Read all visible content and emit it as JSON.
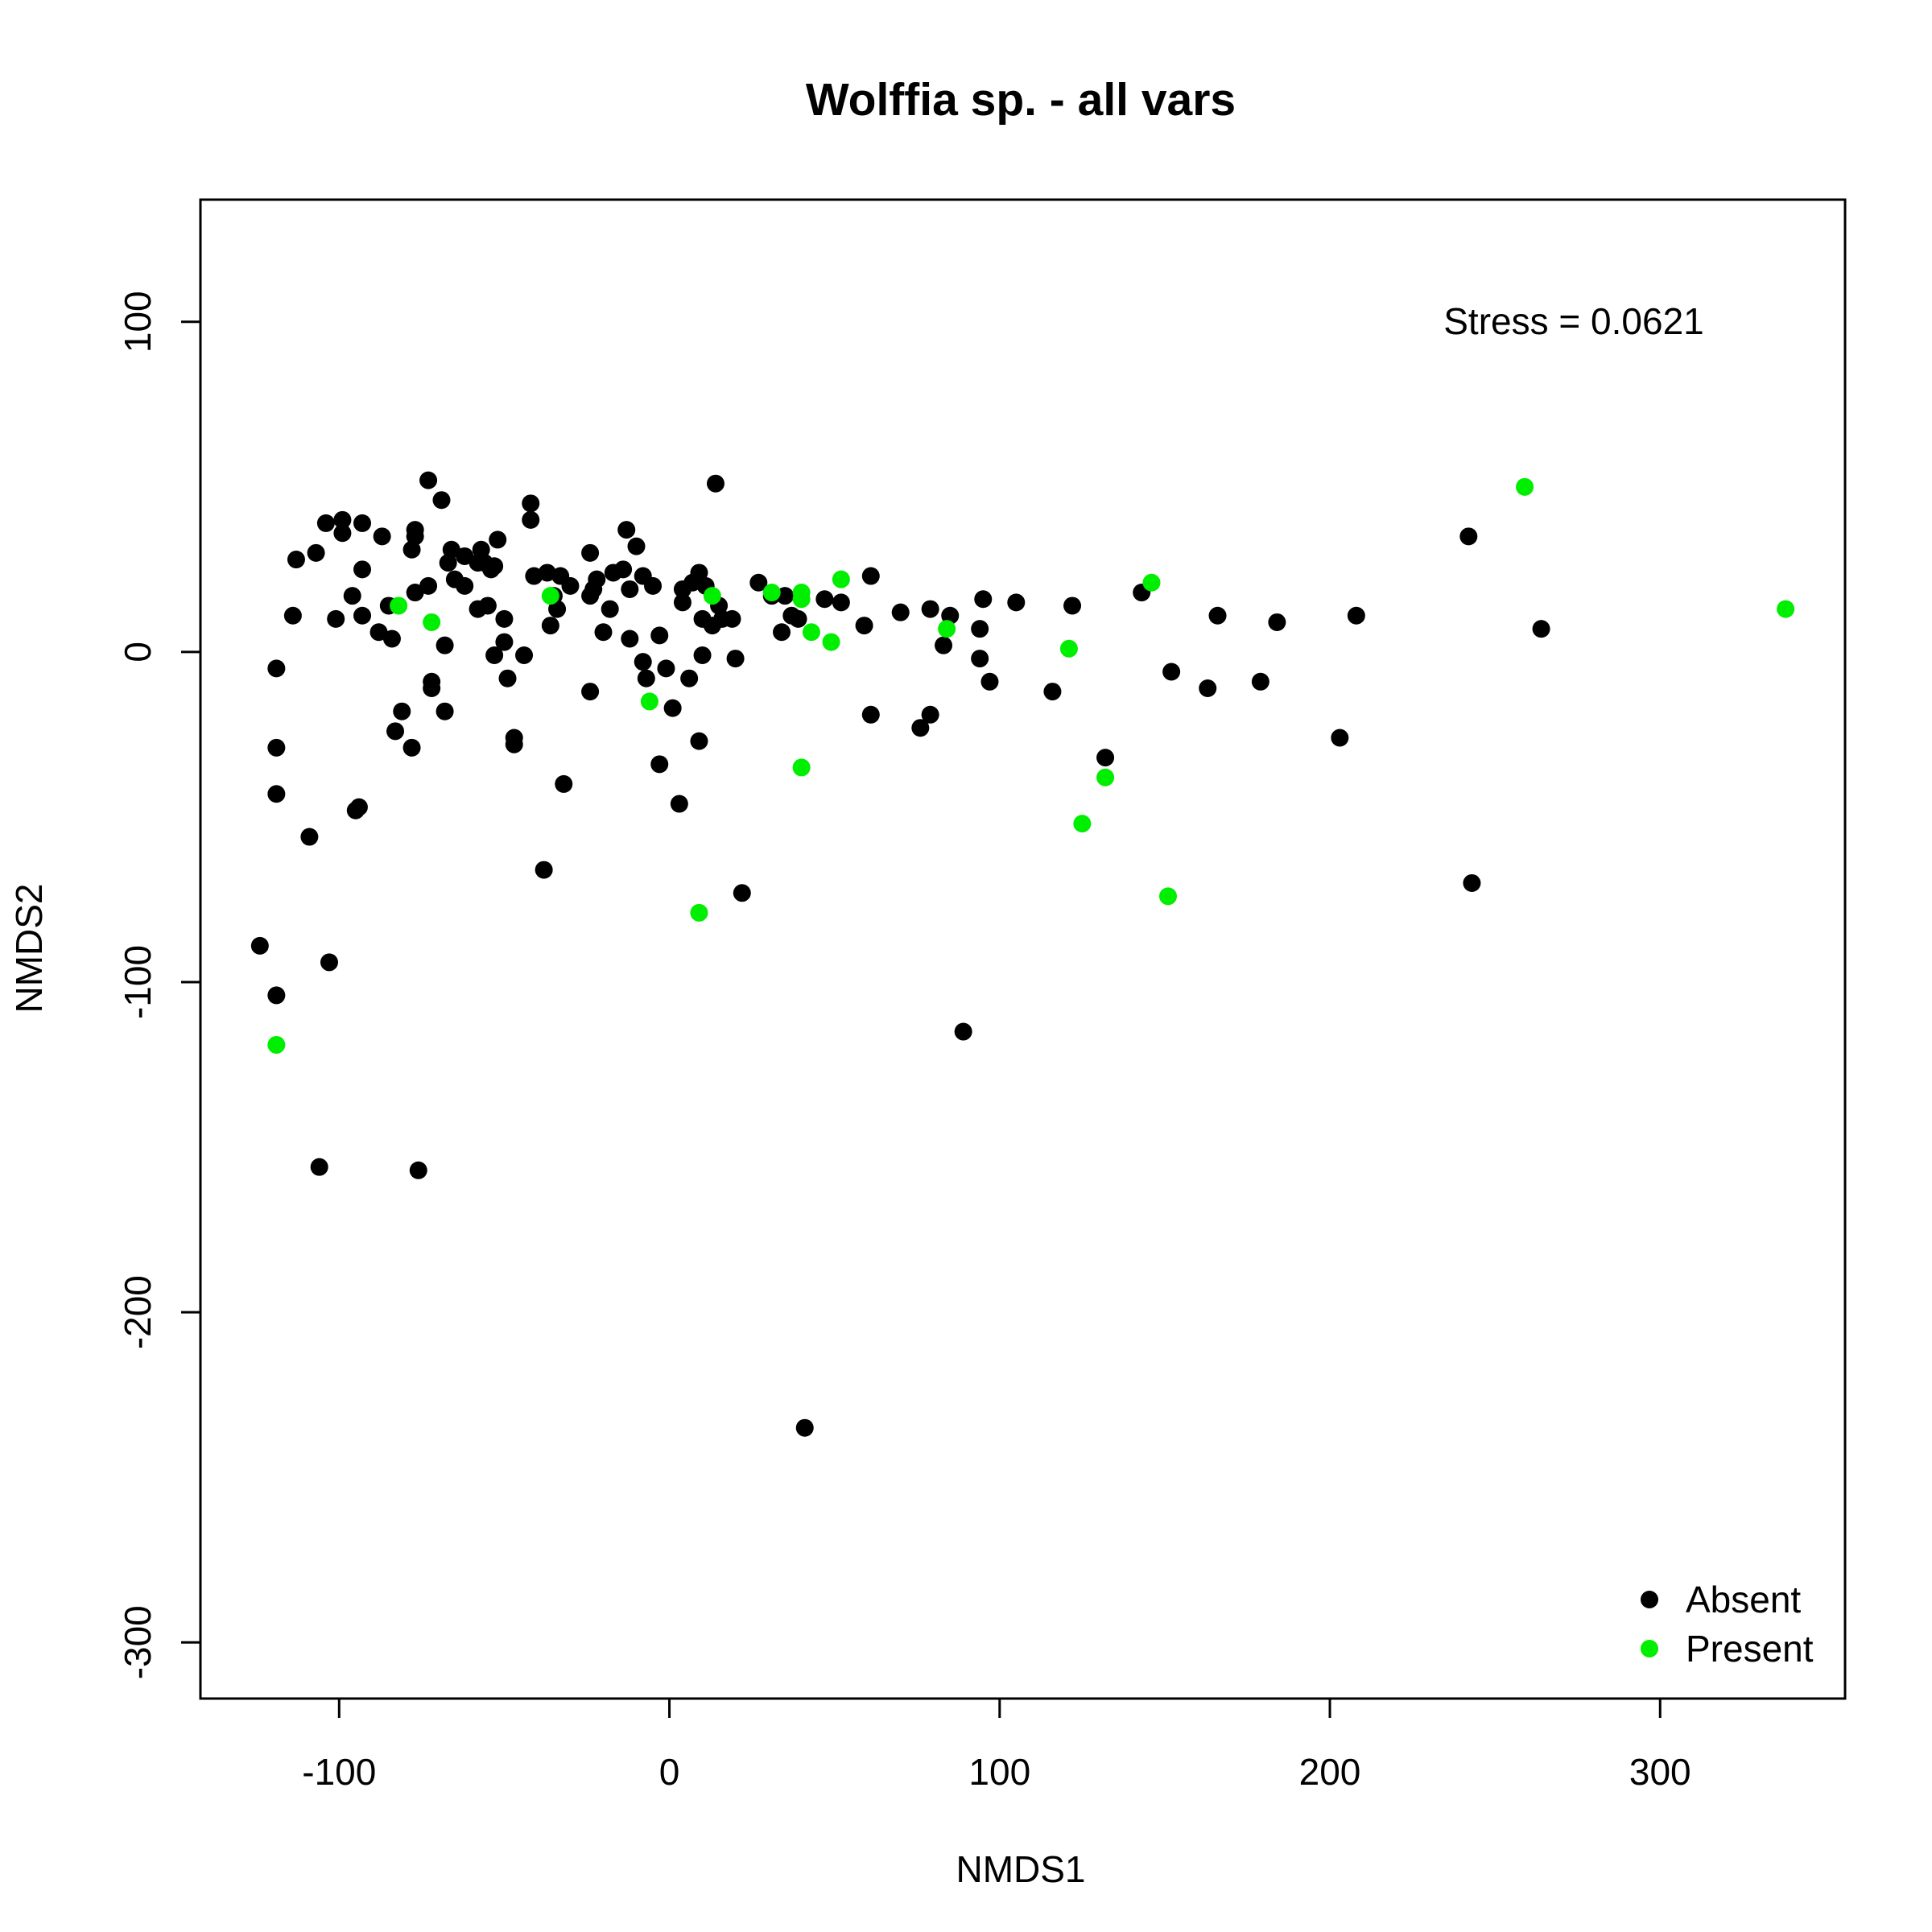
{
  "chart_data": {
    "type": "scatter",
    "title": "Wolffia sp. - all vars",
    "xlabel": "NMDS1",
    "ylabel": "NMDS2",
    "xlim": [
      -142,
      356
    ],
    "ylim": [
      -317,
      137
    ],
    "x_ticks": [
      -100,
      0,
      100,
      200,
      300
    ],
    "y_ticks": [
      -300,
      -200,
      -100,
      0,
      100
    ],
    "x_tick_labels": [
      "-100",
      "0",
      "100",
      "200",
      "300"
    ],
    "y_tick_labels": [
      "-300",
      "-200",
      "-100",
      "0",
      "100"
    ],
    "grid": false,
    "legend_position": "bottom-right",
    "annotation": "Stress = 0.0621",
    "series": [
      {
        "name": "Absent",
        "color": "#000000",
        "points": [
          [
            -124,
            -89
          ],
          [
            -119,
            -5
          ],
          [
            -119,
            -29
          ],
          [
            -119,
            -43
          ],
          [
            -119,
            -104
          ],
          [
            -114,
            11
          ],
          [
            -113,
            28
          ],
          [
            -109,
            -56
          ],
          [
            -107,
            30
          ],
          [
            -106,
            -156
          ],
          [
            -104,
            39
          ],
          [
            -103,
            -94
          ],
          [
            -101,
            10
          ],
          [
            -99,
            40
          ],
          [
            -99,
            36
          ],
          [
            -96,
            17
          ],
          [
            -95,
            -48
          ],
          [
            -94,
            -47
          ],
          [
            -93,
            11
          ],
          [
            -93,
            39
          ],
          [
            -93,
            25
          ],
          [
            -88,
            6
          ],
          [
            -87,
            35
          ],
          [
            -85,
            14
          ],
          [
            -84,
            4
          ],
          [
            -83,
            -24
          ],
          [
            -81,
            -18
          ],
          [
            -78,
            -29
          ],
          [
            -78,
            31
          ],
          [
            -77,
            37
          ],
          [
            -77,
            35
          ],
          [
            -77,
            18
          ],
          [
            -76,
            -157
          ],
          [
            -73,
            20
          ],
          [
            -73,
            52
          ],
          [
            -72,
            -11
          ],
          [
            -72,
            -9
          ],
          [
            -69,
            46
          ],
          [
            -68,
            2
          ],
          [
            -68,
            -18
          ],
          [
            -67,
            27
          ],
          [
            -66,
            31
          ],
          [
            -65,
            22
          ],
          [
            -62,
            20
          ],
          [
            -62,
            29
          ],
          [
            -58,
            27
          ],
          [
            -58,
            13
          ],
          [
            -57,
            31
          ],
          [
            -56,
            27
          ],
          [
            -55,
            14
          ],
          [
            -54,
            25
          ],
          [
            -53,
            -1
          ],
          [
            -53,
            26
          ],
          [
            -52,
            34
          ],
          [
            -50,
            3
          ],
          [
            -50,
            10
          ],
          [
            -49,
            -8
          ],
          [
            -47,
            -26
          ],
          [
            -47,
            -28
          ],
          [
            -44,
            -1
          ],
          [
            -42,
            45
          ],
          [
            -42,
            40
          ],
          [
            -41,
            23
          ],
          [
            -38,
            -66
          ],
          [
            -37,
            24
          ],
          [
            -36,
            8
          ],
          [
            -35,
            17
          ],
          [
            -34,
            13
          ],
          [
            -33,
            23
          ],
          [
            -32,
            -40
          ],
          [
            -30,
            20
          ],
          [
            -24,
            30
          ],
          [
            -24,
            17
          ],
          [
            -24,
            -12
          ],
          [
            -23,
            19
          ],
          [
            -22,
            22
          ],
          [
            -20,
            6
          ],
          [
            -18,
            13
          ],
          [
            -17,
            24
          ],
          [
            -14,
            25
          ],
          [
            -13,
            37
          ],
          [
            -12,
            19
          ],
          [
            -12,
            4
          ],
          [
            -10,
            32
          ],
          [
            -8,
            23
          ],
          [
            -8,
            -3
          ],
          [
            -7,
            -8
          ],
          [
            -5,
            20
          ],
          [
            -3,
            -34
          ],
          [
            -3,
            5
          ],
          [
            -1,
            -5
          ],
          [
            1,
            -17
          ],
          [
            3,
            -46
          ],
          [
            4,
            19
          ],
          [
            4,
            15
          ],
          [
            6,
            -8
          ],
          [
            7,
            21
          ],
          [
            9,
            -27
          ],
          [
            9,
            24
          ],
          [
            10,
            -1
          ],
          [
            10,
            10
          ],
          [
            11,
            20
          ],
          [
            13,
            8
          ],
          [
            14,
            51
          ],
          [
            15,
            14
          ],
          [
            16,
            10
          ],
          [
            19,
            10
          ],
          [
            20,
            -2
          ],
          [
            22,
            -73
          ],
          [
            27,
            21
          ],
          [
            31,
            17
          ],
          [
            34,
            6
          ],
          [
            35,
            17
          ],
          [
            37,
            11
          ],
          [
            39,
            10
          ],
          [
            41,
            -235
          ],
          [
            47,
            16
          ],
          [
            52,
            15
          ],
          [
            59,
            8
          ],
          [
            61,
            23
          ],
          [
            61,
            -19
          ],
          [
            70,
            12
          ],
          [
            76,
            -23
          ],
          [
            79,
            13
          ],
          [
            79,
            -19
          ],
          [
            83,
            2
          ],
          [
            85,
            11
          ],
          [
            89,
            -115
          ],
          [
            94,
            -2
          ],
          [
            94,
            7
          ],
          [
            95,
            16
          ],
          [
            97,
            -9
          ],
          [
            105,
            15
          ],
          [
            116,
            -12
          ],
          [
            122,
            14
          ],
          [
            132,
            -32
          ],
          [
            143,
            18
          ],
          [
            152,
            -6
          ],
          [
            163,
            -11
          ],
          [
            166,
            11
          ],
          [
            179,
            -9
          ],
          [
            184,
            9
          ],
          [
            203,
            -26
          ],
          [
            208,
            11
          ],
          [
            242,
            35
          ],
          [
            243,
            -70
          ],
          [
            264,
            7
          ]
        ]
      },
      {
        "name": "Present",
        "color": "#00ee00",
        "points": [
          [
            -119,
            -119
          ],
          [
            -82,
            14
          ],
          [
            -72,
            9
          ],
          [
            -36,
            17
          ],
          [
            -6,
            -15
          ],
          [
            9,
            -79
          ],
          [
            13,
            17
          ],
          [
            31,
            18
          ],
          [
            40,
            18
          ],
          [
            40,
            16
          ],
          [
            40,
            -35
          ],
          [
            43,
            6
          ],
          [
            49,
            3
          ],
          [
            52,
            22
          ],
          [
            84,
            7
          ],
          [
            121,
            1
          ],
          [
            125,
            -52
          ],
          [
            132,
            -38
          ],
          [
            146,
            21
          ],
          [
            151,
            -74
          ],
          [
            259,
            50
          ],
          [
            338,
            13
          ]
        ]
      }
    ]
  }
}
